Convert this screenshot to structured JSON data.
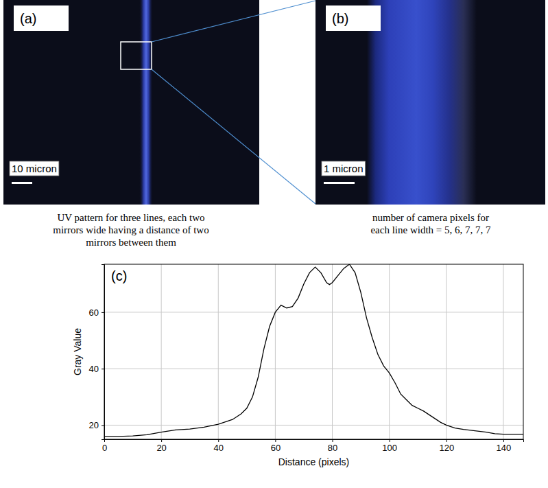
{
  "panels": [
    {
      "label": "(a)",
      "scale_bar": "10 micron",
      "caption": [
        "UV pattern for three lines, each two",
        "mirrors wide having a distance of two",
        "mirrors between them"
      ]
    },
    {
      "label": "(b)",
      "scale_bar": "1 micron",
      "caption": [
        "number of camera pixels for",
        "each line width = 5, 6, 7, 7, 7"
      ]
    }
  ],
  "chart_data": {
    "type": "line",
    "label": "(c)",
    "x_label": "Distance (pixels)",
    "y_label": "Gray Value",
    "x": [
      0,
      5,
      10,
      15,
      20,
      25,
      30,
      35,
      40,
      45,
      48,
      50,
      52,
      54,
      56,
      58,
      60,
      62,
      64,
      66,
      68,
      70,
      72,
      74,
      76,
      78,
      79,
      80,
      82,
      84,
      86,
      88,
      90,
      92,
      94,
      96,
      98,
      100,
      102,
      104,
      106,
      108,
      110,
      112,
      115,
      118,
      120,
      123,
      126,
      130,
      134,
      137,
      140,
      144,
      147
    ],
    "values": [
      16,
      16,
      16.2,
      16.6,
      17.5,
      18.3,
      18.6,
      19.3,
      20.3,
      22,
      24,
      26,
      30,
      37,
      47,
      55,
      60,
      62.5,
      61.5,
      62,
      65,
      70,
      74,
      76,
      74,
      70.5,
      69.8,
      70.5,
      73,
      75.5,
      77,
      74,
      67,
      58,
      51,
      45,
      41,
      38.5,
      35,
      31,
      29,
      27,
      26,
      25,
      23,
      21,
      20,
      19,
      18.5,
      18,
      17.5,
      17,
      16.8,
      16.8,
      16.8
    ],
    "color": "#000000",
    "xlim": [
      0,
      147
    ],
    "ylim": [
      15,
      77
    ],
    "xticks": [
      0,
      20,
      40,
      60,
      80,
      100,
      120,
      140
    ],
    "yticks": [
      20,
      40,
      60
    ],
    "grid": true
  }
}
